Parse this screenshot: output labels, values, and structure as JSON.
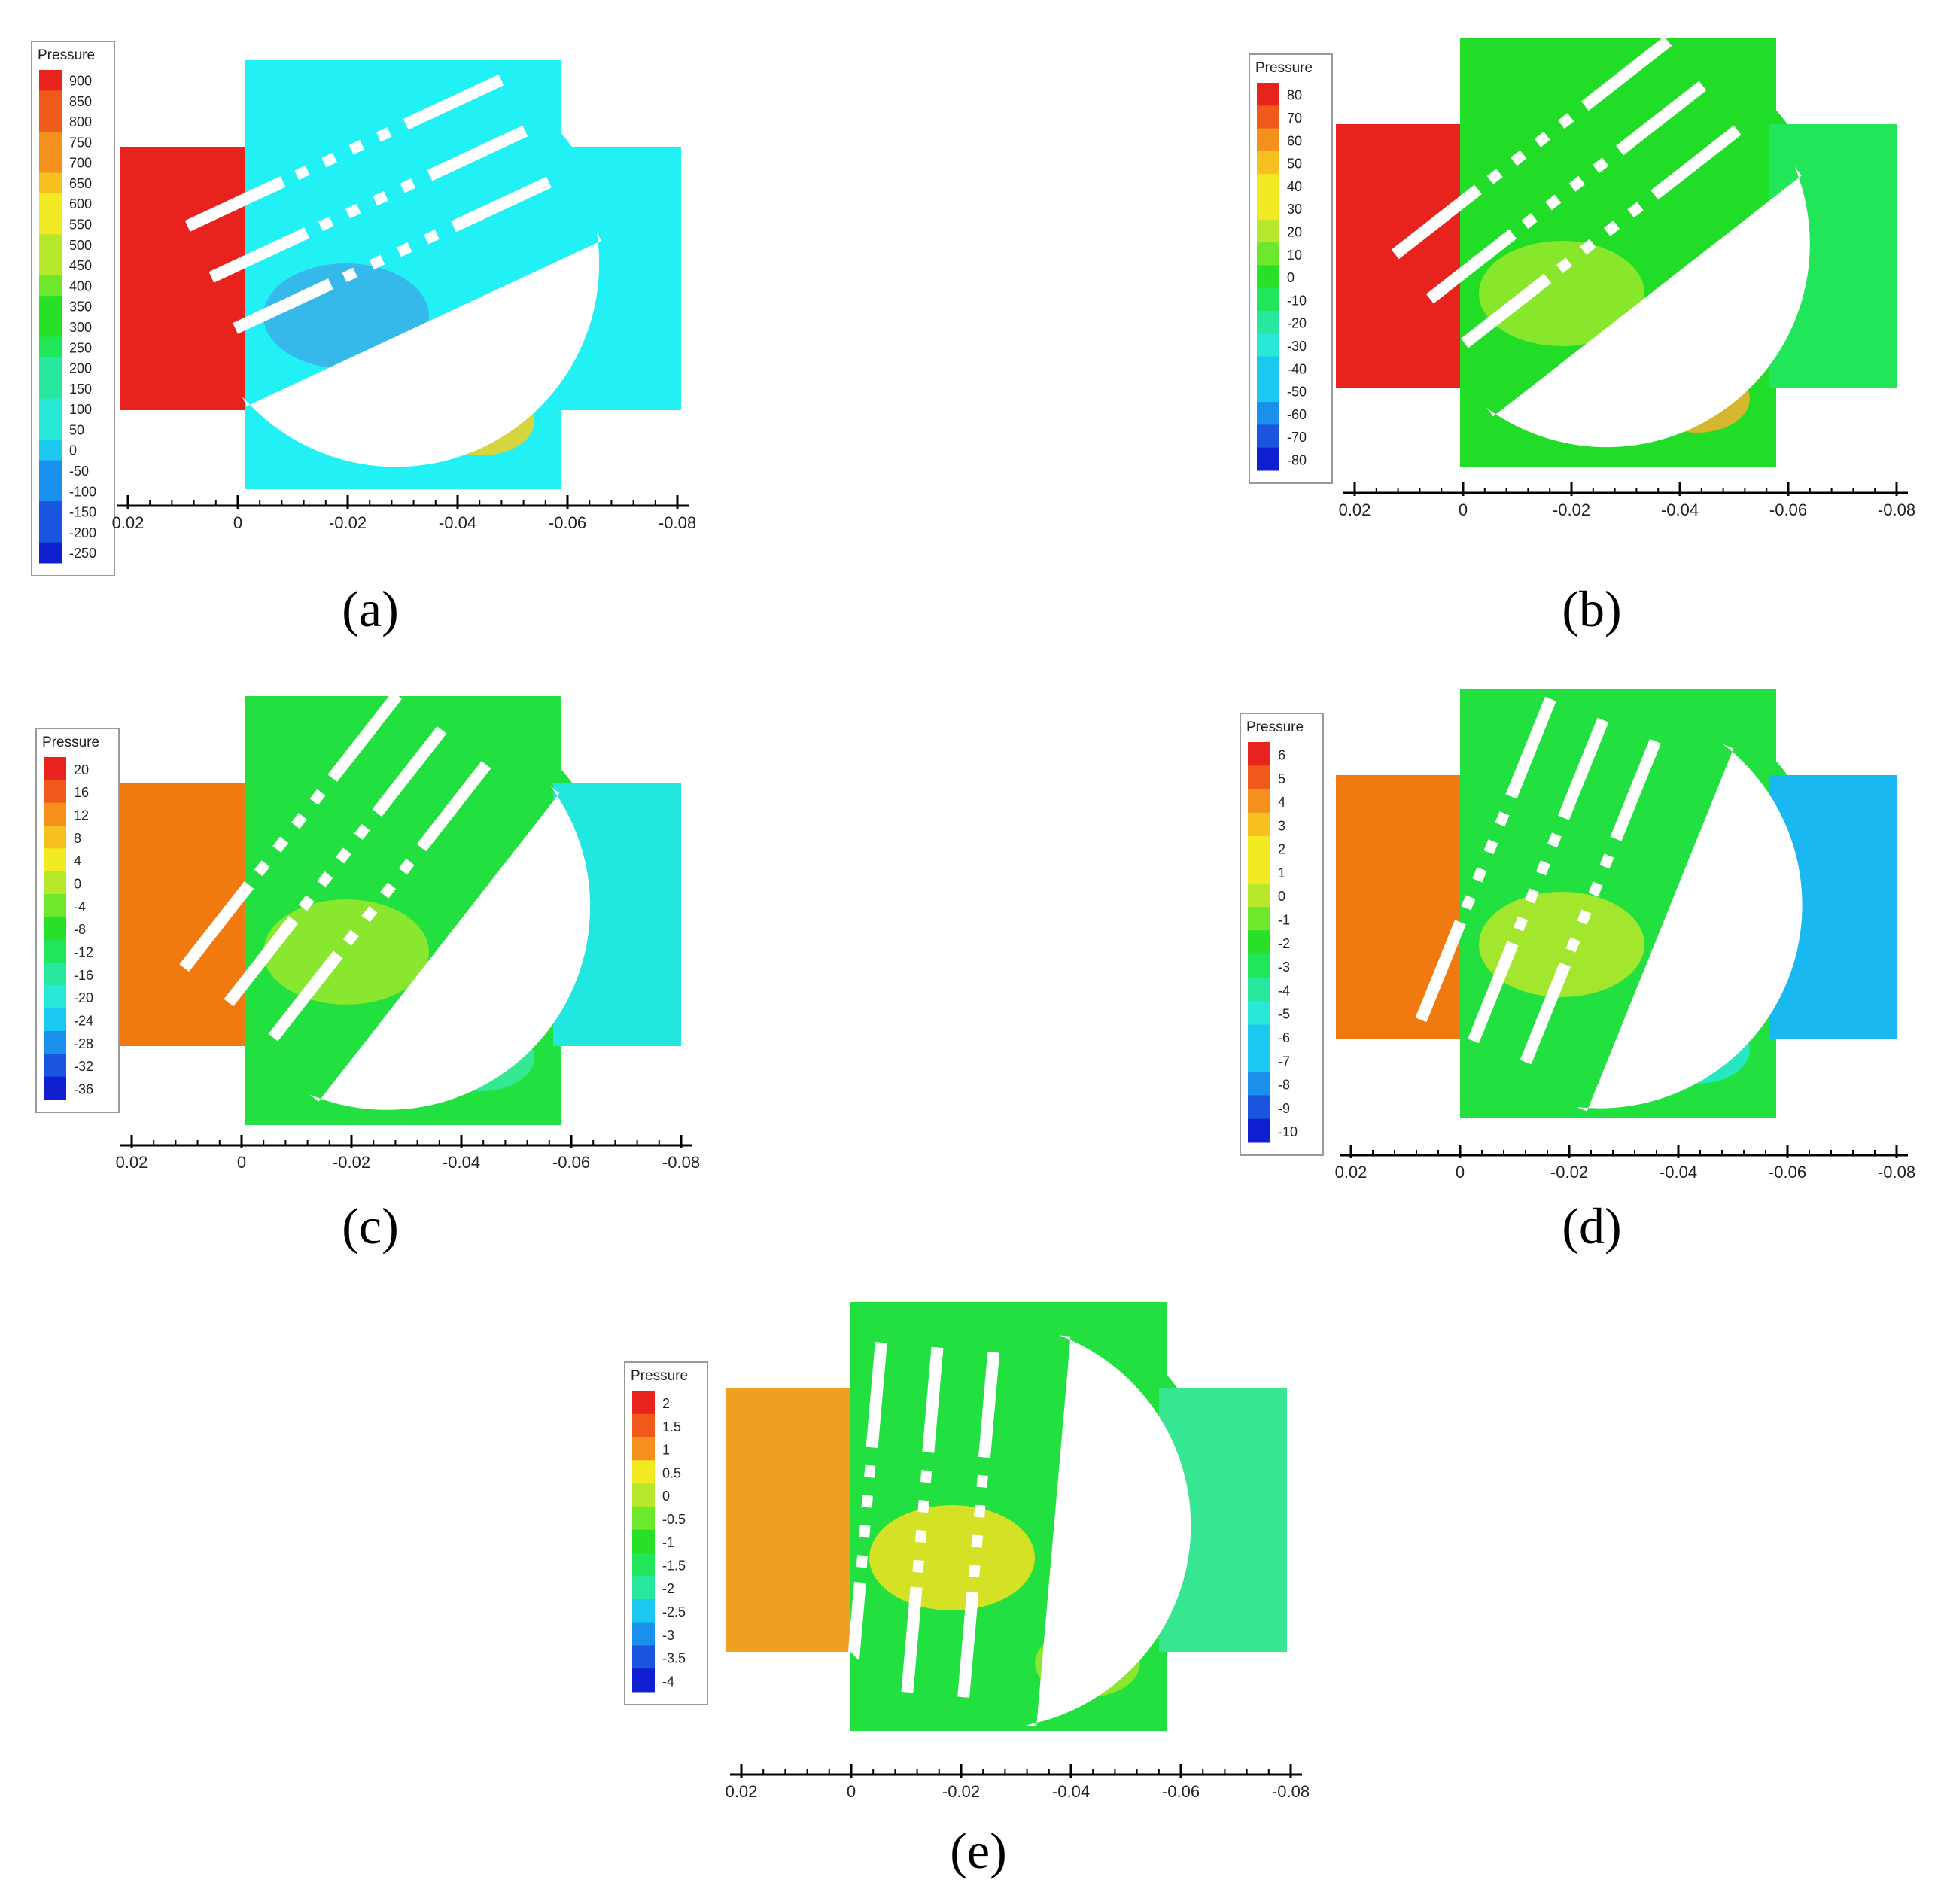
{
  "panels": [
    {
      "id": "a",
      "caption": "(a)",
      "legend_title": "Pressure",
      "levels": [
        "900",
        "850",
        "800",
        "750",
        "700",
        "650",
        "600",
        "550",
        "500",
        "450",
        "400",
        "350",
        "300",
        "250",
        "200",
        "150",
        "100",
        "50",
        "0",
        "-50",
        "-100",
        "-150",
        "-200",
        "-250"
      ],
      "axis_ticks": [
        "0.02",
        "0",
        "-0.02",
        "-0.04",
        "-0.06",
        "-0.08"
      ],
      "colors": {
        "inlet": "#e8221c",
        "body": "#21f0f5",
        "outlet": "#21f0f5",
        "accent1": "#3aaee8",
        "accent2": "#f5d020"
      },
      "blade_angle_deg": 65
    },
    {
      "id": "b",
      "caption": "(b)",
      "legend_title": "Pressure",
      "levels": [
        "80",
        "70",
        "60",
        "50",
        "40",
        "30",
        "20",
        "10",
        "0",
        "-10",
        "-20",
        "-30",
        "-40",
        "-50",
        "-60",
        "-70",
        "-80"
      ],
      "axis_ticks": [
        "0.02",
        "0",
        "-0.02",
        "-0.04",
        "-0.06",
        "-0.08"
      ],
      "colors": {
        "inlet": "#e8221c",
        "body": "#22dd28",
        "outlet": "#22e65a",
        "accent1": "#9ae82c",
        "accent2": "#f5b030"
      },
      "blade_angle_deg": 52
    },
    {
      "id": "c",
      "caption": "(c)",
      "legend_title": "Pressure",
      "levels": [
        "20",
        "16",
        "12",
        "8",
        "4",
        "0",
        "-4",
        "-8",
        "-12",
        "-16",
        "-20",
        "-24",
        "-28",
        "-32",
        "-36"
      ],
      "axis_ticks": [
        "0.02",
        "0",
        "-0.02",
        "-0.04",
        "-0.06",
        "-0.08"
      ],
      "colors": {
        "inlet": "#f07a10",
        "body": "#22e040",
        "outlet": "#22e6e0",
        "accent1": "#9ae82c",
        "accent2": "#36eaa0"
      },
      "blade_angle_deg": 38
    },
    {
      "id": "d",
      "caption": "(d)",
      "legend_title": "Pressure",
      "levels": [
        "6",
        "5",
        "4",
        "3",
        "2",
        "1",
        "0",
        "-1",
        "-2",
        "-3",
        "-4",
        "-5",
        "-6",
        "-7",
        "-8",
        "-9",
        "-10"
      ],
      "axis_ticks": [
        "0.02",
        "0",
        "-0.02",
        "-0.04",
        "-0.06",
        "-0.08"
      ],
      "colors": {
        "inlet": "#f07a10",
        "body": "#22e040",
        "outlet": "#1ab8f0",
        "accent1": "#b8e82c",
        "accent2": "#28e8d8"
      },
      "blade_angle_deg": 22
    },
    {
      "id": "e",
      "caption": "(e)",
      "legend_title": "Pressure",
      "levels": [
        "2",
        "1.5",
        "1",
        "0.5",
        "0",
        "-0.5",
        "-1",
        "-1.5",
        "-2",
        "-2.5",
        "-3",
        "-3.5",
        "-4"
      ],
      "axis_ticks": [
        "0.02",
        "0",
        "-0.02",
        "-0.04",
        "-0.06",
        "-0.08"
      ],
      "colors": {
        "inlet": "#f0a020",
        "body": "#22e040",
        "outlet": "#36e690",
        "accent1": "#f5e020",
        "accent2": "#9ae82c"
      },
      "blade_angle_deg": 5
    }
  ],
  "colormap": [
    "#e8221c",
    "#ef5a1a",
    "#f5901c",
    "#f5c020",
    "#f2ea22",
    "#b8e82c",
    "#6ee82c",
    "#28e028",
    "#22e65a",
    "#28e8a0",
    "#28e8d8",
    "#1ac8f0",
    "#1a90ec",
    "#1a55e0",
    "#1020d0"
  ]
}
